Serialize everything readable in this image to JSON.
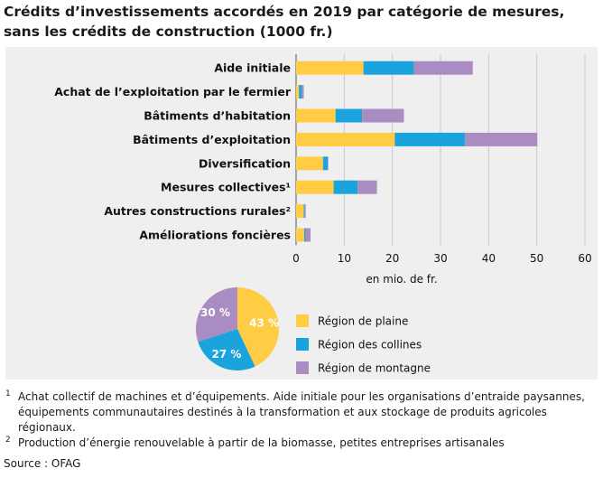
{
  "chart_data": [
    {
      "type": "bar",
      "orientation": "horizontal",
      "stacked": true,
      "title": "Crédits d’investissements accordés en 2019 par catégorie de mesures, sans les crédits de construction (1000 fr.)",
      "categories": [
        "Aide initiale",
        "Achat de l’exploitation par le fermier",
        "Bâtiments d’habitation",
        "Bâtiments d’exploitation",
        "Diversification",
        "Mesures collectives¹",
        "Autres constructions rurales²",
        "Améliorations foncières"
      ],
      "series": [
        {
          "name": "Région de plaine",
          "color": "#ffcc44",
          "values": [
            14.0,
            0.6,
            8.2,
            20.5,
            5.6,
            7.8,
            1.6,
            1.7
          ]
        },
        {
          "name": "Région des collines",
          "color": "#1aa3dd",
          "values": [
            10.5,
            0.6,
            5.5,
            14.6,
            1.0,
            5.0,
            0.2,
            0.3
          ]
        },
        {
          "name": "Région de montagne",
          "color": "#a98cc2",
          "values": [
            12.2,
            0.4,
            8.7,
            15.0,
            0.1,
            4.0,
            0.2,
            1.0
          ]
        }
      ],
      "xlim": [
        0,
        60
      ],
      "xticks": [
        0,
        10,
        20,
        30,
        40,
        50,
        60
      ],
      "xlabel": "en mio. de fr.",
      "grid": true
    },
    {
      "type": "pie",
      "slices": [
        {
          "name": "Région de plaine",
          "value": 43,
          "label": "43 %",
          "color": "#ffcc44"
        },
        {
          "name": "Région des collines",
          "value": 27,
          "label": "27 %",
          "color": "#1aa3dd"
        },
        {
          "name": "Région de montagne",
          "value": 30,
          "label": "30 %",
          "color": "#a98cc2"
        }
      ]
    }
  ],
  "footnotes": [
    {
      "mark": "1",
      "text": "Achat collectif de machines et d’équipements. Aide initiale pour les organisations d’entraide paysannes, équipements communautaires destinés à la transformation et aux stockage de produits agricoles régionaux."
    },
    {
      "mark": "2",
      "text": "Production d’énergie renouvelable à partir de la biomasse, petites entreprises artisanales"
    }
  ],
  "source": "Source : OFAG"
}
